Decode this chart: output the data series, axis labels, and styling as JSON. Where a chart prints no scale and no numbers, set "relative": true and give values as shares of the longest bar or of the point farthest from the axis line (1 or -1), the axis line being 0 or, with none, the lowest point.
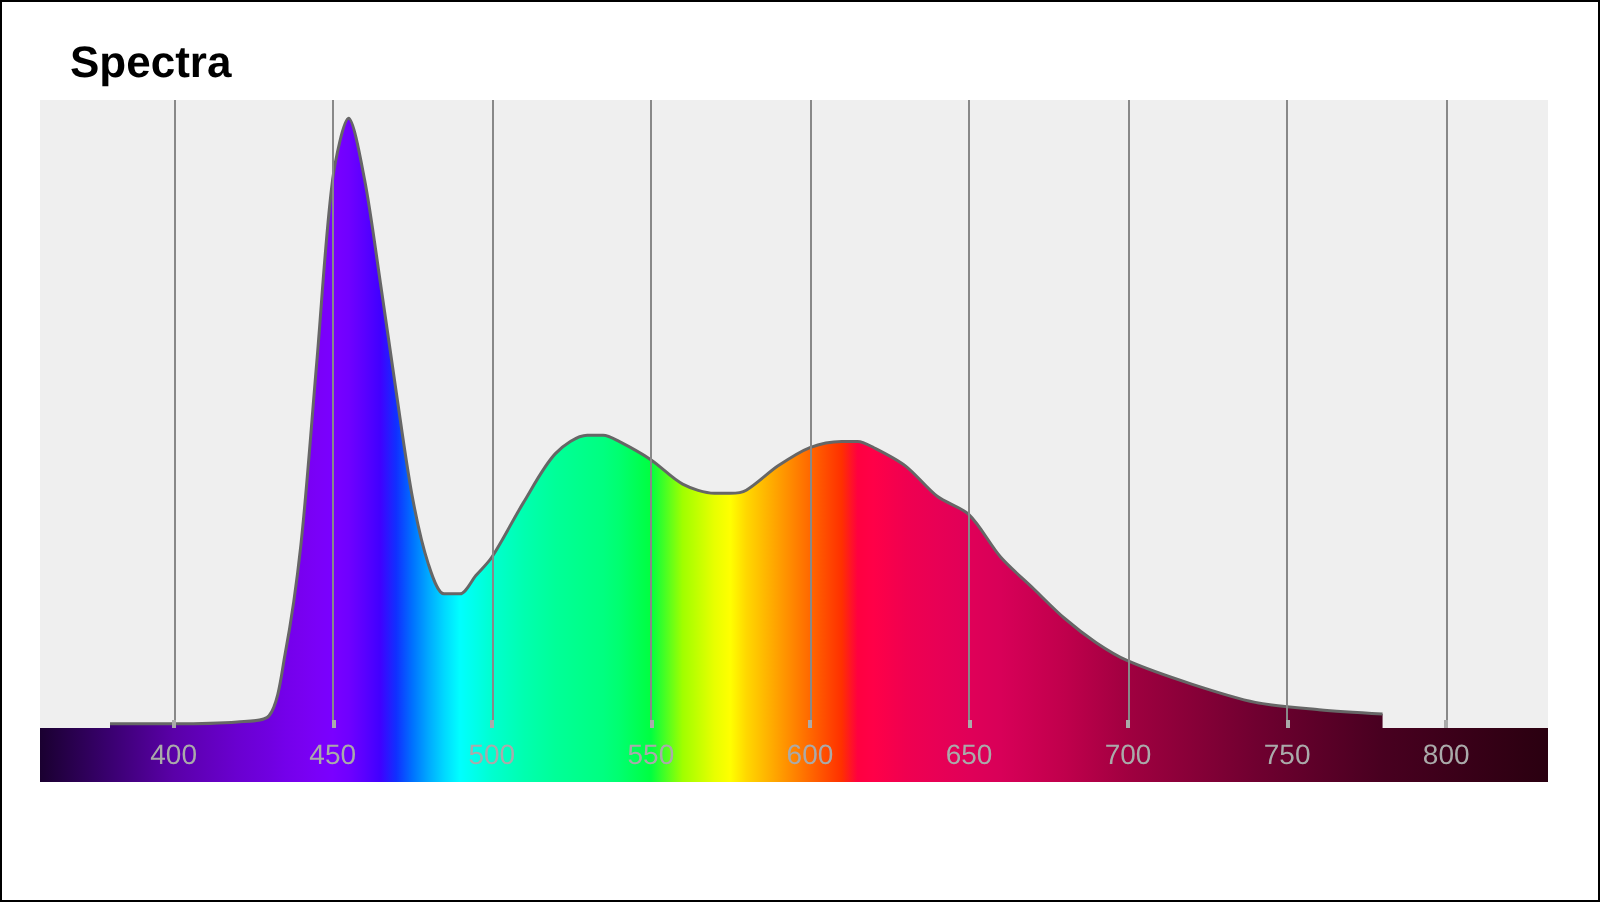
{
  "chart_data": {
    "type": "area",
    "title": "Spectra",
    "relative": true,
    "x": [
      380,
      400,
      420,
      430,
      435,
      440,
      445,
      450,
      455,
      460,
      465,
      470,
      475,
      480,
      485,
      490,
      495,
      500,
      510,
      520,
      530,
      535,
      540,
      550,
      560,
      570,
      575,
      580,
      590,
      600,
      610,
      615,
      620,
      630,
      640,
      650,
      660,
      670,
      680,
      690,
      700,
      720,
      740,
      760,
      780
    ],
    "series": [
      {
        "color": "#666666",
        "values": [
          0.007,
          0.007,
          0.01,
          0.02,
          0.12,
          0.3,
          0.6,
          0.9,
          1,
          0.9,
          0.73,
          0.55,
          0.38,
          0.27,
          0.22,
          0.22,
          0.25,
          0.28,
          0.37,
          0.45,
          0.48,
          0.48,
          0.47,
          0.44,
          0.4,
          0.385,
          0.385,
          0.39,
          0.43,
          0.46,
          0.47,
          0.47,
          0.46,
          0.43,
          0.38,
          0.35,
          0.28,
          0.23,
          0.18,
          0.14,
          0.11,
          0.072,
          0.042,
          0.03,
          0.023
        ],
        "colors": [
          "#3a0070",
          "#5a00a8",
          "#6a00d0",
          "#7000e0",
          "#7400ea",
          "#7800f0",
          "#7a00f8",
          "#7a00ff",
          "#7000ff",
          "#5a00ff",
          "#4000ff",
          "#1030ff",
          "#0070ff",
          "#00a8ff",
          "#00d8ff",
          "#00ffff",
          "#00ffe8",
          "#00ffd0",
          "#00ffb0",
          "#00ff98",
          "#00ff88",
          "#00ff80",
          "#00ff70",
          "#00ff40",
          "#a0ff00",
          "#e8ff00",
          "#ffff00",
          "#ffd800",
          "#ffa000",
          "#ff6800",
          "#ff3000",
          "#ff0040",
          "#ff0048",
          "#f00050",
          "#e80055",
          "#e00058",
          "#d80058",
          "#cc0052",
          "#c0004c",
          "#b00046",
          "#a00040",
          "#880038",
          "#700030",
          "#5c0028",
          "#480020"
        ]
      }
    ],
    "xlim": [
      358,
      832
    ],
    "xticks": [
      400,
      450,
      500,
      550,
      600,
      650,
      700,
      750,
      800
    ],
    "grid": "x"
  }
}
